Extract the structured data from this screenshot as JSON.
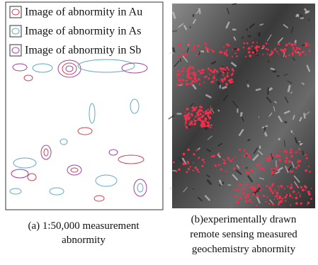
{
  "legend": {
    "items": [
      {
        "label": "Image of abnormity in Au"
      },
      {
        "label": "Image of abnormity in As"
      },
      {
        "label": "Image of abnormity in Sb"
      }
    ]
  },
  "captions": {
    "left": [
      "(a) 1:50,000 measurement",
      "abnormity"
    ],
    "right": [
      "(b)experimentally drawn",
      "remote sensing measured",
      "geochemistry abnormity"
    ]
  }
}
